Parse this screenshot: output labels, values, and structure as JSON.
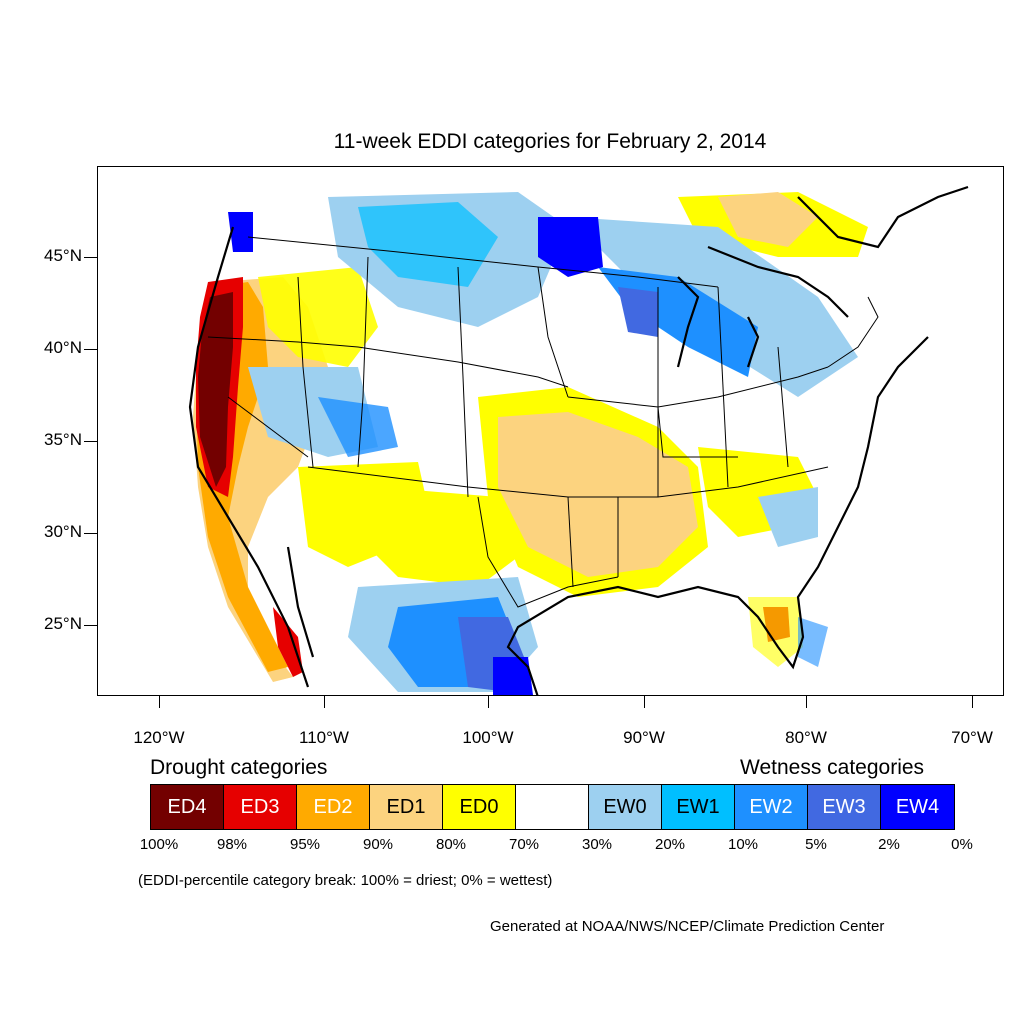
{
  "title": "11-week EDDI categories for February 2, 2014",
  "lat_labels": [
    "45°N",
    "40°N",
    "35°N",
    "30°N",
    "25°N"
  ],
  "lon_labels": [
    "120°W",
    "110°W",
    "100°W",
    "90°W",
    "80°W",
    "70°W"
  ],
  "legend": {
    "drought_heading": "Drought categories",
    "wetness_heading": "Wetness categories",
    "categories": [
      {
        "label": "ED4",
        "color": "#730000",
        "text_color": "#ffffff"
      },
      {
        "label": "ED3",
        "color": "#e60000",
        "text_color": "#ffffff"
      },
      {
        "label": "ED2",
        "color": "#ffaa00",
        "text_color": "#ffffff"
      },
      {
        "label": "ED1",
        "color": "#fcd37f",
        "text_color": "#000000"
      },
      {
        "label": "ED0",
        "color": "#ffff00",
        "text_color": "#000000"
      },
      {
        "label": "",
        "color": "#ffffff",
        "text_color": "#000000"
      },
      {
        "label": "EW0",
        "color": "#9dd0f0",
        "text_color": "#000000"
      },
      {
        "label": "EW1",
        "color": "#00bfff",
        "text_color": "#000000"
      },
      {
        "label": "EW2",
        "color": "#1e90ff",
        "text_color": "#ffffff"
      },
      {
        "label": "EW3",
        "color": "#4169e1",
        "text_color": "#ffffff"
      },
      {
        "label": "EW4",
        "color": "#0000ff",
        "text_color": "#ffffff"
      }
    ],
    "percentile_breaks": [
      "100%",
      "98%",
      "95%",
      "90%",
      "80%",
      "70%",
      "30%",
      "20%",
      "10%",
      "5%",
      "2%",
      "0%"
    ]
  },
  "note": "(EDDI-percentile category break: 100% = driest; 0% = wettest)",
  "credit": "Generated at NOAA/NWS/NCEP/Climate Prediction Center"
}
